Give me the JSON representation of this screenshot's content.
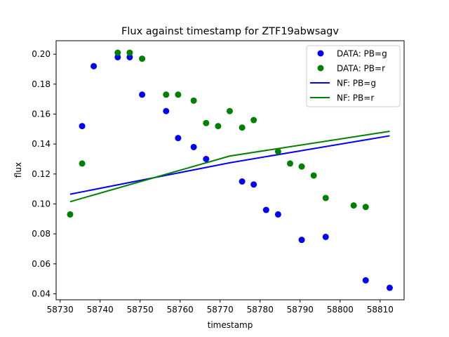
{
  "chart_data": {
    "type": "scatter",
    "title": "Flux against timestamp for ZTF19abwsagv",
    "xlabel": "timestamp",
    "ylabel": "flux",
    "xlim": [
      58729,
      58816
    ],
    "ylim": [
      0.036,
      0.209
    ],
    "x_ticks": [
      58730,
      58740,
      58750,
      58760,
      58770,
      58780,
      58790,
      58800,
      58810
    ],
    "y_ticks": [
      0.04,
      0.06,
      0.08,
      0.1,
      0.12,
      0.14,
      0.16,
      0.18,
      0.2
    ],
    "y_tick_labels": [
      "0.04",
      "0.06",
      "0.08",
      "0.10",
      "0.12",
      "0.14",
      "0.16",
      "0.18",
      "0.20"
    ],
    "grid": false,
    "legend_position": "top-right",
    "series": [
      {
        "name": "DATA: PB=g",
        "kind": "scatter",
        "color": "#0000ff",
        "x": [
          58735.5,
          58738.4,
          58744.4,
          58747.4,
          58750.5,
          58756.5,
          58759.5,
          58763.4,
          58766.5,
          58775.5,
          58778.4,
          58781.5,
          58784.5,
          58790.4,
          58796.4,
          58806.4,
          58812.4
        ],
        "y": [
          0.152,
          0.192,
          0.198,
          0.198,
          0.173,
          0.162,
          0.144,
          0.138,
          0.13,
          0.115,
          0.113,
          0.096,
          0.093,
          0.076,
          0.078,
          0.049,
          0.044
        ]
      },
      {
        "name": "DATA: PB=r",
        "kind": "scatter",
        "color": "#008000",
        "x": [
          58732.5,
          58735.5,
          58744.4,
          58747.4,
          58750.5,
          58756.5,
          58759.5,
          58763.4,
          58766.5,
          58769.5,
          58772.4,
          58775.5,
          58778.4,
          58784.5,
          58787.5,
          58790.4,
          58793.4,
          58796.4,
          58803.4,
          58806.4
        ],
        "y": [
          0.093,
          0.127,
          0.201,
          0.201,
          0.197,
          0.173,
          0.173,
          0.169,
          0.154,
          0.152,
          0.162,
          0.151,
          0.156,
          0.135,
          0.127,
          0.125,
          0.119,
          0.104,
          0.099,
          0.098
        ]
      },
      {
        "name": "NF: PB=g",
        "kind": "line",
        "color": "#0000ff",
        "x": [
          58732.5,
          58772.4,
          58812.4
        ],
        "y": [
          0.1065,
          0.1275,
          0.1455
        ]
      },
      {
        "name": "NF: PB=r",
        "kind": "line",
        "color": "#008000",
        "x": [
          58732.5,
          58772.4,
          58812.4
        ],
        "y": [
          0.1015,
          0.132,
          0.1485
        ]
      }
    ]
  }
}
